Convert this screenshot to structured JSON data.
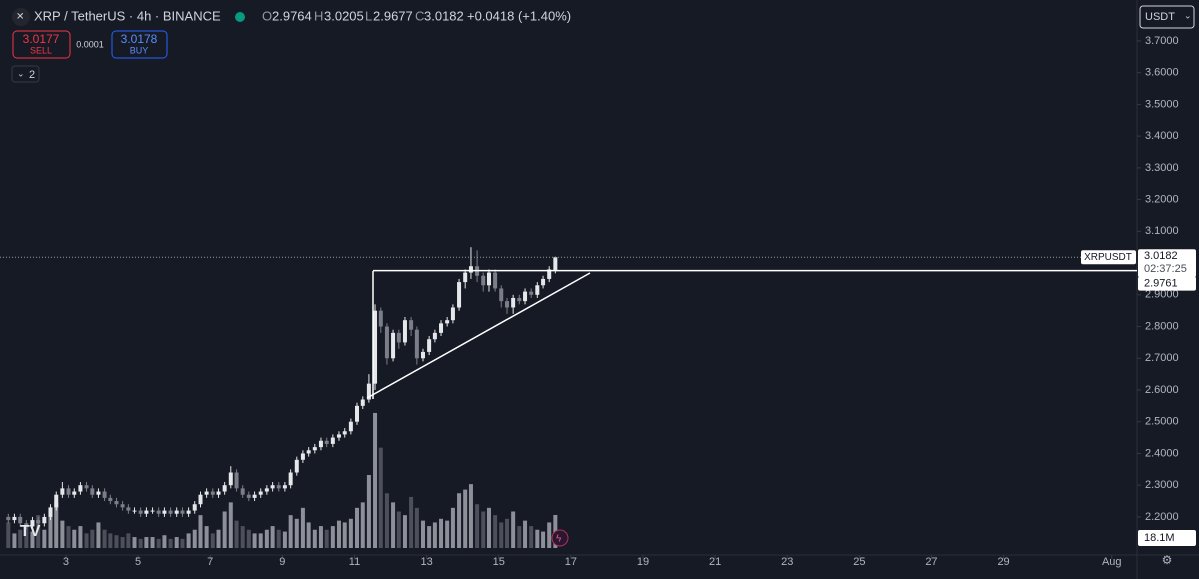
{
  "header": {
    "symbol": "XRP / TetherUS · 4h · BINANCE",
    "o_label": "O",
    "o": 2.9764,
    "h_label": "H",
    "h": 3.0205,
    "l_label": "L",
    "l": 2.9677,
    "c_label": "C",
    "c": 3.0182,
    "change": "+0.0418 (+1.40%)",
    "sell_price": 3.0177,
    "sell_label": "SELL",
    "spread": 0.0001,
    "buy_price": 3.0178,
    "buy_label": "BUY",
    "indicators": 2,
    "currency": "USDT"
  },
  "price_tag": {
    "symbol": "XRPUSDT",
    "price": 3.0182,
    "countdown": "02:37:25",
    "line_price": 2.9761
  },
  "chart_data": {
    "type": "candlestick",
    "up_color": "#e6e7ea",
    "down_color": "#7b7e88",
    "volume_up_color": "#8d9099",
    "volume_down_color": "#4d505a",
    "x": [
      1.4,
      1.57,
      1.73,
      1.9,
      2.07,
      2.23,
      2.4,
      2.57,
      2.73,
      2.9,
      3.07,
      3.23,
      3.4,
      3.57,
      3.73,
      3.9,
      4.07,
      4.23,
      4.4,
      4.57,
      4.73,
      4.9,
      5.07,
      5.23,
      5.4,
      5.57,
      5.73,
      5.9,
      6.07,
      6.23,
      6.4,
      6.57,
      6.73,
      6.9,
      7.07,
      7.23,
      7.4,
      7.57,
      7.73,
      7.9,
      8.07,
      8.23,
      8.4,
      8.57,
      8.73,
      8.9,
      9.07,
      9.23,
      9.4,
      9.57,
      9.73,
      9.9,
      10.07,
      10.23,
      10.4,
      10.57,
      10.73,
      10.9,
      11.07,
      11.23,
      11.4,
      11.57,
      11.73,
      11.9,
      12.07,
      12.23,
      12.4,
      12.57,
      12.73,
      12.9,
      13.07,
      13.23,
      13.4,
      13.57,
      13.73,
      13.9,
      14.07,
      14.23,
      14.4,
      14.57,
      14.73,
      14.9,
      15.07,
      15.23,
      15.4,
      15.57,
      15.73,
      15.9,
      16.07,
      16.23,
      16.4,
      16.57
    ],
    "open": [
      2.2,
      2.19,
      2.2,
      2.18,
      2.17,
      2.19,
      2.18,
      2.2,
      2.23,
      2.27,
      2.29,
      2.27,
      2.28,
      2.3,
      2.29,
      2.27,
      2.28,
      2.26,
      2.25,
      2.24,
      2.23,
      2.22,
      2.22,
      2.21,
      2.22,
      2.22,
      2.21,
      2.22,
      2.21,
      2.22,
      2.21,
      2.22,
      2.24,
      2.27,
      2.28,
      2.27,
      2.28,
      2.3,
      2.34,
      2.29,
      2.27,
      2.26,
      2.27,
      2.28,
      2.29,
      2.3,
      2.29,
      2.3,
      2.34,
      2.38,
      2.4,
      2.41,
      2.42,
      2.44,
      2.43,
      2.45,
      2.46,
      2.47,
      2.5,
      2.55,
      2.57,
      2.62,
      2.85,
      2.8,
      2.7,
      2.78,
      2.75,
      2.82,
      2.79,
      2.7,
      2.72,
      2.76,
      2.78,
      2.81,
      2.82,
      2.86,
      2.94,
      2.97,
      2.99,
      2.96,
      2.93,
      2.97,
      2.92,
      2.88,
      2.86,
      2.89,
      2.88,
      2.91,
      2.9,
      2.93,
      2.95,
      2.9764
    ],
    "high": [
      2.21,
      2.21,
      2.21,
      2.19,
      2.2,
      2.2,
      2.21,
      2.24,
      2.28,
      2.31,
      2.3,
      2.29,
      2.31,
      2.31,
      2.3,
      2.29,
      2.29,
      2.27,
      2.26,
      2.25,
      2.24,
      2.23,
      2.23,
      2.23,
      2.23,
      2.23,
      2.23,
      2.23,
      2.23,
      2.23,
      2.23,
      2.25,
      2.28,
      2.29,
      2.29,
      2.29,
      2.31,
      2.36,
      2.35,
      2.3,
      2.28,
      2.28,
      2.29,
      2.3,
      2.31,
      2.31,
      2.31,
      2.35,
      2.39,
      2.41,
      2.42,
      2.43,
      2.45,
      2.45,
      2.46,
      2.47,
      2.48,
      2.51,
      2.56,
      2.58,
      2.65,
      2.87,
      2.86,
      2.81,
      2.79,
      2.79,
      2.83,
      2.83,
      2.8,
      2.73,
      2.77,
      2.79,
      2.82,
      2.83,
      2.87,
      2.95,
      2.98,
      3.05,
      3.04,
      2.97,
      2.98,
      2.98,
      2.93,
      2.89,
      2.9,
      2.9,
      2.92,
      2.92,
      2.94,
      2.96,
      2.99,
      3.0205
    ],
    "low": [
      2.18,
      2.18,
      2.17,
      2.16,
      2.16,
      2.17,
      2.17,
      2.19,
      2.22,
      2.26,
      2.26,
      2.26,
      2.27,
      2.28,
      2.26,
      2.26,
      2.25,
      2.24,
      2.23,
      2.22,
      2.21,
      2.21,
      2.2,
      2.2,
      2.21,
      2.2,
      2.2,
      2.2,
      2.2,
      2.2,
      2.2,
      2.21,
      2.23,
      2.26,
      2.26,
      2.26,
      2.27,
      2.29,
      2.28,
      2.26,
      2.25,
      2.25,
      2.26,
      2.27,
      2.28,
      2.28,
      2.28,
      2.29,
      2.33,
      2.37,
      2.39,
      2.4,
      2.41,
      2.42,
      2.42,
      2.44,
      2.45,
      2.46,
      2.49,
      2.54,
      2.56,
      2.6,
      2.78,
      2.68,
      2.69,
      2.73,
      2.74,
      2.77,
      2.68,
      2.69,
      2.71,
      2.75,
      2.77,
      2.8,
      2.81,
      2.85,
      2.92,
      2.95,
      2.94,
      2.91,
      2.91,
      2.91,
      2.86,
      2.84,
      2.84,
      2.87,
      2.87,
      2.89,
      2.89,
      2.92,
      2.94,
      2.9677
    ],
    "close": [
      2.19,
      2.2,
      2.18,
      2.17,
      2.19,
      2.18,
      2.2,
      2.23,
      2.27,
      2.29,
      2.27,
      2.28,
      2.3,
      2.29,
      2.27,
      2.28,
      2.26,
      2.25,
      2.24,
      2.23,
      2.22,
      2.22,
      2.21,
      2.22,
      2.22,
      2.21,
      2.22,
      2.21,
      2.22,
      2.21,
      2.22,
      2.24,
      2.27,
      2.28,
      2.27,
      2.28,
      2.3,
      2.34,
      2.29,
      2.27,
      2.26,
      2.27,
      2.28,
      2.29,
      2.3,
      2.29,
      2.3,
      2.34,
      2.38,
      2.4,
      2.41,
      2.42,
      2.44,
      2.43,
      2.45,
      2.46,
      2.47,
      2.5,
      2.55,
      2.57,
      2.62,
      2.85,
      2.8,
      2.7,
      2.78,
      2.75,
      2.82,
      2.79,
      2.7,
      2.72,
      2.76,
      2.78,
      2.81,
      2.82,
      2.86,
      2.94,
      2.97,
      2.99,
      2.96,
      2.93,
      2.97,
      2.92,
      2.88,
      2.86,
      2.89,
      2.88,
      2.91,
      2.9,
      2.93,
      2.95,
      2.98,
      3.0182
    ],
    "volume": [
      14,
      8,
      10,
      12,
      9,
      18,
      10,
      20,
      25,
      15,
      12,
      10,
      12,
      8,
      10,
      14,
      10,
      8,
      7,
      6,
      8,
      6,
      5,
      6,
      6,
      5,
      7,
      5,
      6,
      5,
      8,
      10,
      18,
      12,
      8,
      10,
      20,
      25,
      15,
      12,
      10,
      8,
      8,
      10,
      12,
      10,
      9,
      18,
      16,
      22,
      14,
      10,
      12,
      10,
      12,
      15,
      14,
      16,
      22,
      25,
      40,
      74,
      55,
      30,
      25,
      20,
      18,
      28,
      22,
      15,
      12,
      14,
      16,
      15,
      22,
      30,
      32,
      35,
      24,
      20,
      22,
      18,
      14,
      16,
      20,
      12,
      15,
      12,
      10,
      9,
      14,
      18.1
    ],
    "last_volume_label": "18.1M",
    "xlim": [
      1.17,
      32.7
    ],
    "xticks": [
      3,
      5,
      7,
      9,
      11,
      13,
      15,
      17,
      19,
      21,
      23,
      25,
      27,
      29,
      {
        "value": 32,
        "label": "Aug"
      }
    ],
    "ylim": [
      2.08,
      3.829
    ],
    "yticks": [
      {
        "value": 2.2,
        "label": "2.2000"
      },
      {
        "value": 2.3,
        "label": "2.3000"
      },
      {
        "value": 2.4,
        "label": "2.4000"
      },
      {
        "value": 2.5,
        "label": "2.5000"
      },
      {
        "value": 2.6,
        "label": "2.6000"
      },
      {
        "value": 2.7,
        "label": "2.7000"
      },
      {
        "value": 2.8,
        "label": "2.8000"
      },
      {
        "value": 2.9,
        "label": "2.9000"
      },
      {
        "value": 3.0,
        "label": "3.0000"
      },
      {
        "value": 3.1,
        "label": "3.1000"
      },
      {
        "value": 3.2,
        "label": "3.2000"
      },
      {
        "value": 3.3,
        "label": "3.3000"
      },
      {
        "value": 3.4,
        "label": "3.4000"
      },
      {
        "value": 3.5,
        "label": "3.5000"
      },
      {
        "value": 3.6,
        "label": "3.6000"
      },
      {
        "value": 3.7,
        "label": "3.7000"
      }
    ],
    "vlim": [
      0,
      80
    ]
  }
}
